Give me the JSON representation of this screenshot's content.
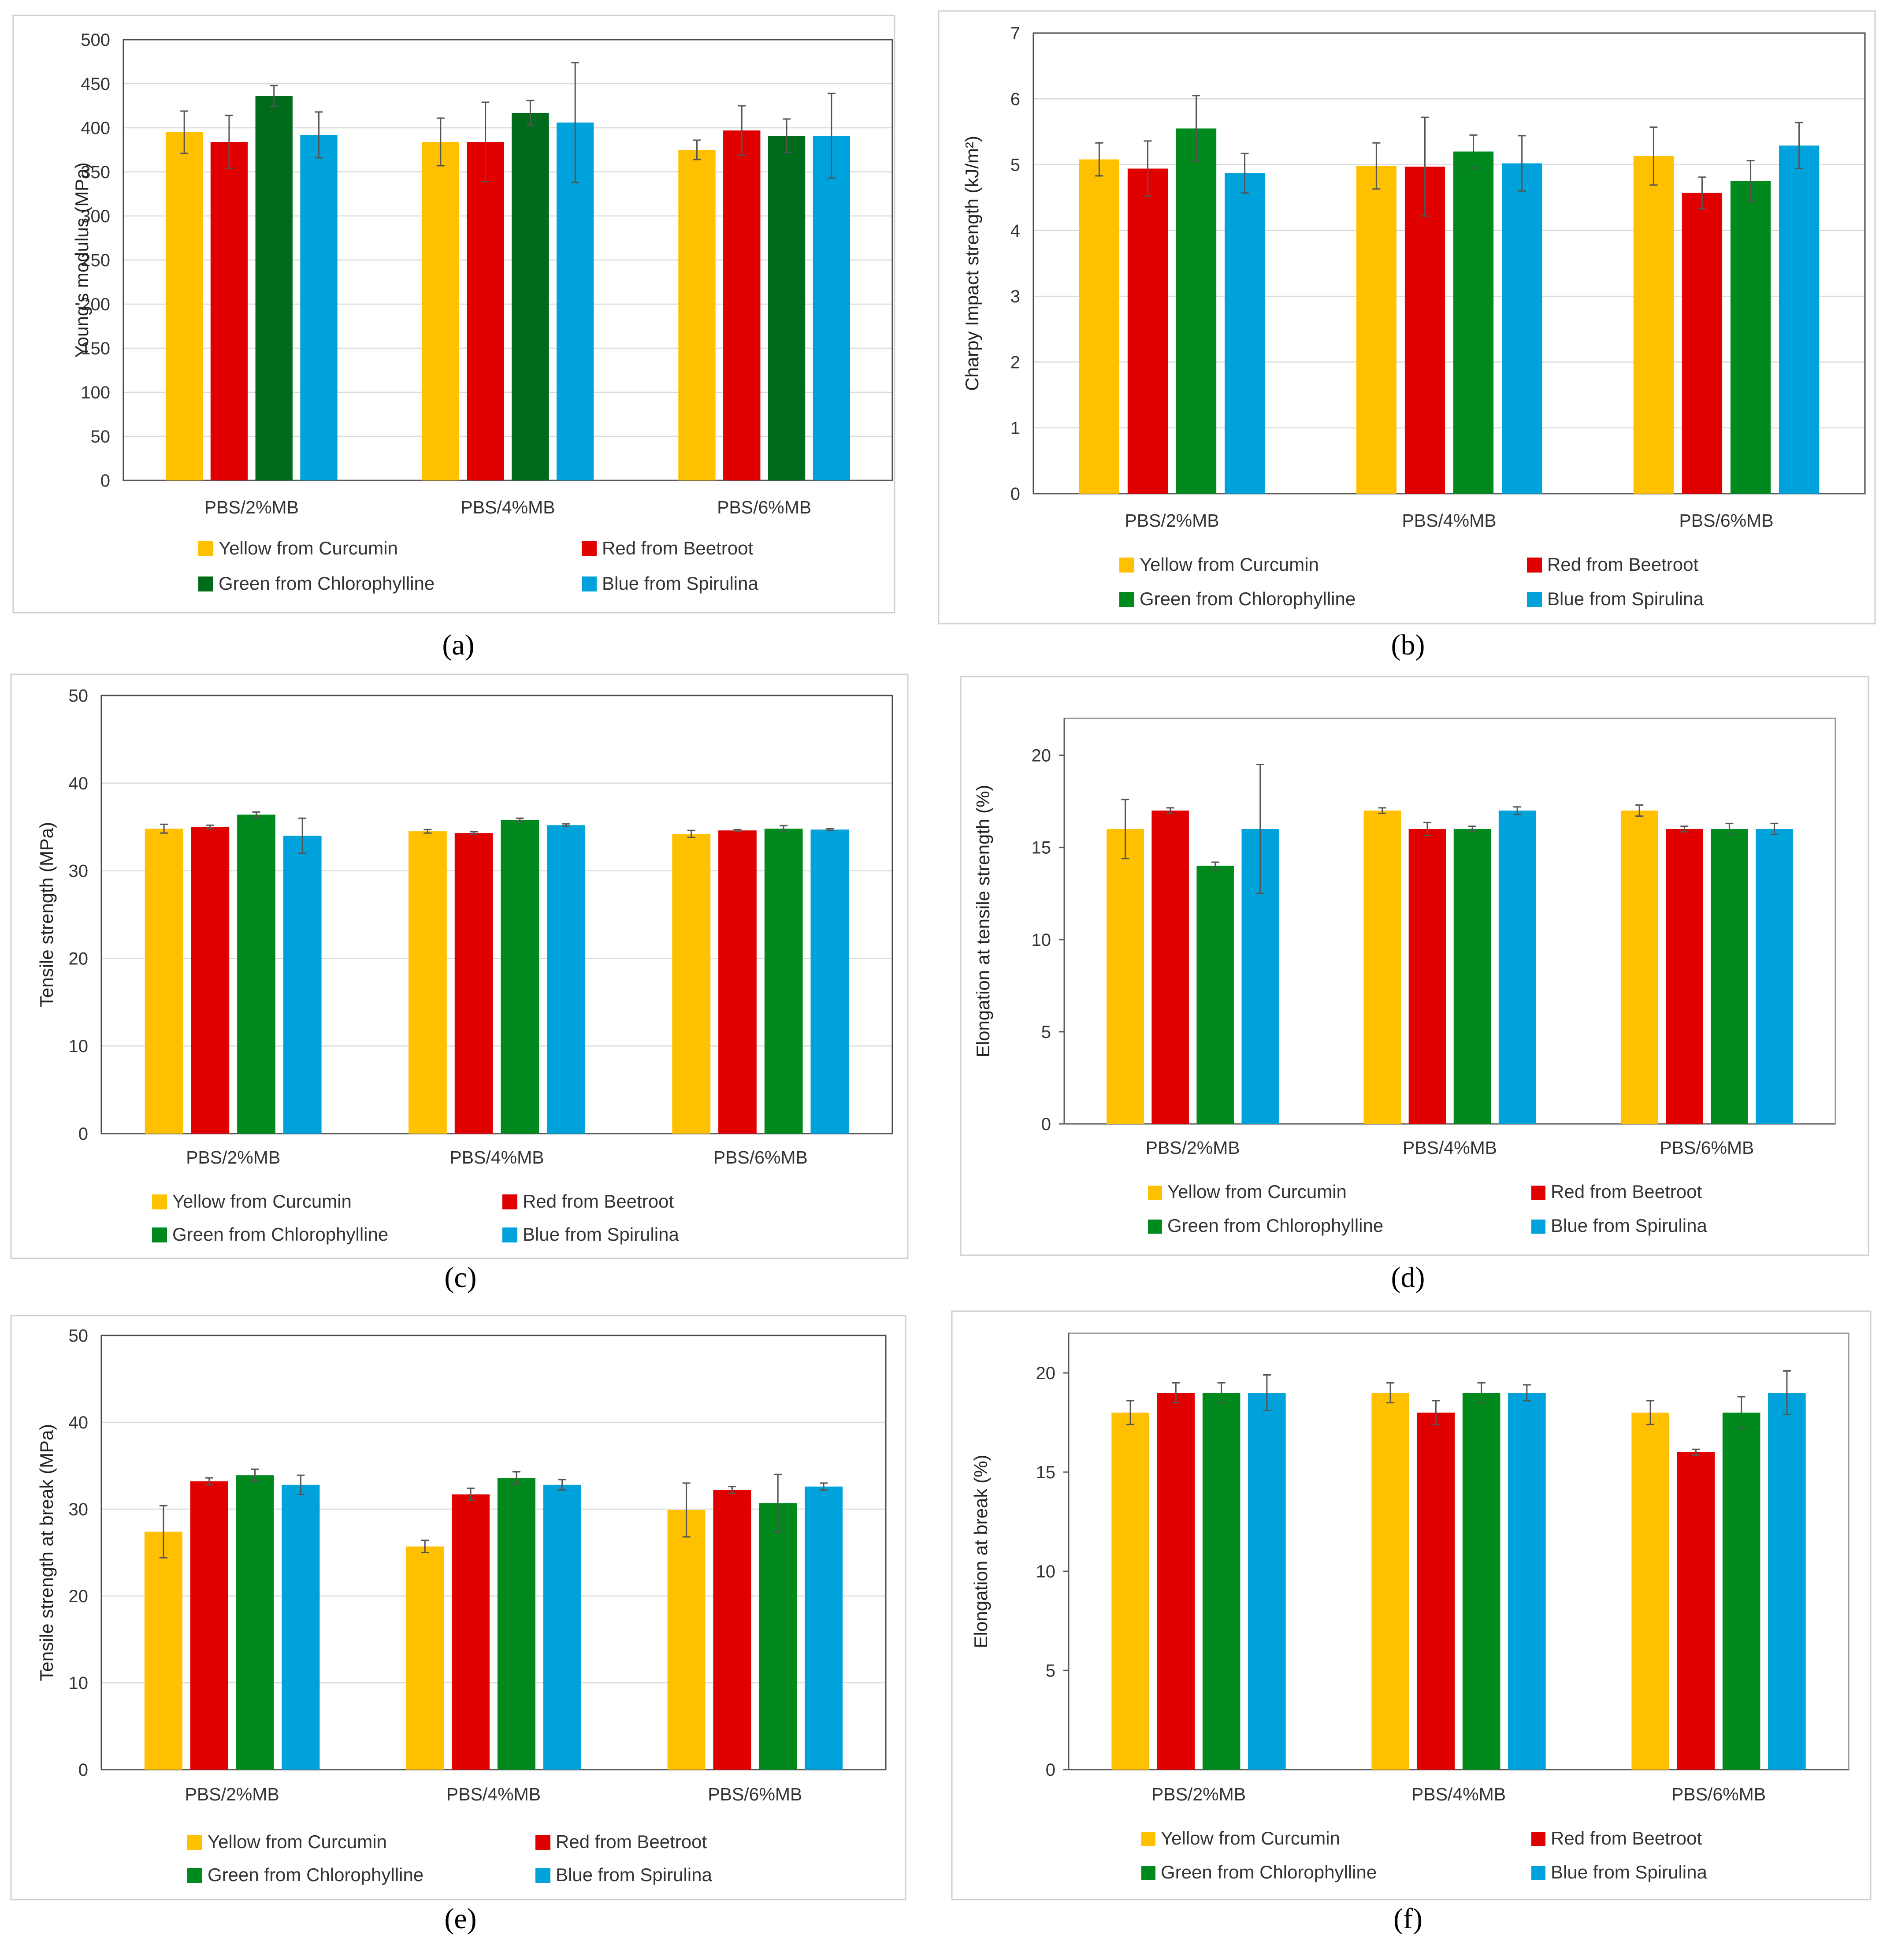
{
  "figure": {
    "series_names": [
      "Yellow from Curcumin",
      "Red from Beetroot",
      "Green from Chlorophylline",
      "Blue from Spirulina"
    ],
    "categories": [
      "PBS/2%MB",
      "PBS/4%MB",
      "PBS/6%MB"
    ]
  },
  "chart_data": [
    {
      "id": "a",
      "panel_label": "(a)",
      "type": "bar",
      "title": "",
      "ylabel": "Young's modulus (MPa)",
      "xlabel": "",
      "ylim": [
        0,
        500
      ],
      "ytick_step": 50,
      "grid": true,
      "legend": "bottom",
      "categories": [
        "PBS/2%MB",
        "PBS/4%MB",
        "PBS/6%MB"
      ],
      "series": [
        {
          "name": "Yellow from Curcumin",
          "color": "#FFC000",
          "values": [
            395,
            384,
            375
          ],
          "errors": [
            24,
            27,
            11
          ]
        },
        {
          "name": "Red from Beetroot",
          "color": "#E00000",
          "values": [
            384,
            384,
            397
          ],
          "errors": [
            30,
            45,
            28
          ]
        },
        {
          "name": "Green from Chlorophylline",
          "color": "#006B1A",
          "values": [
            436,
            417,
            391
          ],
          "errors": [
            12,
            14,
            19
          ]
        },
        {
          "name": "Blue from Spirulina",
          "color": "#00A2DB",
          "values": [
            392,
            406,
            391
          ],
          "errors": [
            26,
            68,
            48
          ]
        }
      ]
    },
    {
      "id": "b",
      "panel_label": "(b)",
      "type": "bar",
      "title": "",
      "ylabel": "Charpy Impact strength (kJ/m²)",
      "xlabel": "",
      "ylim": [
        0,
        7
      ],
      "ytick_step": 1,
      "grid": true,
      "legend": "bottom",
      "categories": [
        "PBS/2%MB",
        "PBS/4%MB",
        "PBS/6%MB"
      ],
      "series": [
        {
          "name": "Yellow from Curcumin",
          "color": "#FFC000",
          "values": [
            5.08,
            4.98,
            5.13
          ],
          "errors": [
            0.25,
            0.35,
            0.44
          ]
        },
        {
          "name": "Red from Beetroot",
          "color": "#E00000",
          "values": [
            4.94,
            4.97,
            4.57
          ],
          "errors": [
            0.42,
            0.75,
            0.24
          ]
        },
        {
          "name": "Green from Chlorophylline",
          "color": "#008A1E",
          "values": [
            5.55,
            5.2,
            4.75
          ],
          "errors": [
            0.5,
            0.25,
            0.31
          ]
        },
        {
          "name": "Blue from Spirulina",
          "color": "#00A2DB",
          "values": [
            4.87,
            5.02,
            5.29
          ],
          "errors": [
            0.3,
            0.42,
            0.35
          ]
        }
      ]
    },
    {
      "id": "c",
      "panel_label": "(c)",
      "type": "bar",
      "title": "",
      "ylabel": "Tensile strength (MPa)",
      "xlabel": "",
      "ylim": [
        0,
        50
      ],
      "ytick_step": 10,
      "grid": true,
      "legend": "bottom",
      "categories": [
        "PBS/2%MB",
        "PBS/4%MB",
        "PBS/6%MB"
      ],
      "series": [
        {
          "name": "Yellow from Curcumin",
          "color": "#FFC000",
          "values": [
            34.8,
            34.5,
            34.2
          ],
          "errors": [
            0.5,
            0.2,
            0.4
          ]
        },
        {
          "name": "Red from Beetroot",
          "color": "#E00000",
          "values": [
            35.0,
            34.3,
            34.6
          ],
          "errors": [
            0.2,
            0.15,
            0.1
          ]
        },
        {
          "name": "Green from Chlorophylline",
          "color": "#008A1E",
          "values": [
            36.4,
            35.8,
            34.8
          ],
          "errors": [
            0.3,
            0.2,
            0.35
          ]
        },
        {
          "name": "Blue from Spirulina",
          "color": "#00A2DB",
          "values": [
            34.0,
            35.2,
            34.7
          ],
          "errors": [
            2.0,
            0.15,
            0.1
          ]
        }
      ]
    },
    {
      "id": "d",
      "panel_label": "(d)",
      "type": "bar",
      "title": "",
      "ylabel": "Elongation at tensile strength (%)",
      "xlabel": "",
      "ylim": [
        0,
        22
      ],
      "ytick_step": 5,
      "grid": false,
      "legend": "bottom",
      "categories": [
        "PBS/2%MB",
        "PBS/4%MB",
        "PBS/6%MB"
      ],
      "series": [
        {
          "name": "Yellow from Curcumin",
          "color": "#FFC000",
          "values": [
            16,
            17,
            17
          ],
          "errors": [
            1.6,
            0.15,
            0.3
          ]
        },
        {
          "name": "Red from Beetroot",
          "color": "#E00000",
          "values": [
            17,
            16,
            16
          ],
          "errors": [
            0.15,
            0.35,
            0.15
          ]
        },
        {
          "name": "Green from Chlorophylline",
          "color": "#008A1E",
          "values": [
            14,
            16,
            16
          ],
          "errors": [
            0.2,
            0.15,
            0.3
          ]
        },
        {
          "name": "Blue from Spirulina",
          "color": "#00A2DB",
          "values": [
            16,
            17,
            16
          ],
          "errors": [
            3.5,
            0.2,
            0.3
          ]
        }
      ]
    },
    {
      "id": "e",
      "panel_label": "(e)",
      "type": "bar",
      "title": "",
      "ylabel": "Tensile strength at break (MPa)",
      "xlabel": "",
      "ylim": [
        0,
        50
      ],
      "ytick_step": 10,
      "grid": true,
      "legend": "bottom",
      "categories": [
        "PBS/2%MB",
        "PBS/4%MB",
        "PBS/6%MB"
      ],
      "series": [
        {
          "name": "Yellow from Curcumin",
          "color": "#FFC000",
          "values": [
            27.4,
            25.7,
            29.9
          ],
          "errors": [
            3.0,
            0.7,
            3.1
          ]
        },
        {
          "name": "Red from Beetroot",
          "color": "#E00000",
          "values": [
            33.2,
            31.7,
            32.2
          ],
          "errors": [
            0.4,
            0.7,
            0.4
          ]
        },
        {
          "name": "Green from Chlorophylline",
          "color": "#008A1E",
          "values": [
            33.9,
            33.6,
            30.7
          ],
          "errors": [
            0.7,
            0.7,
            3.3
          ]
        },
        {
          "name": "Blue from Spirulina",
          "color": "#00A2DB",
          "values": [
            32.8,
            32.8,
            32.6
          ],
          "errors": [
            1.1,
            0.6,
            0.4
          ]
        }
      ]
    },
    {
      "id": "f",
      "panel_label": "(f)",
      "type": "bar",
      "title": "",
      "ylabel": "Elongation at break (%)",
      "xlabel": "",
      "ylim": [
        0,
        22
      ],
      "ytick_step": 5,
      "grid": false,
      "legend": "bottom",
      "categories": [
        "PBS/2%MB",
        "PBS/4%MB",
        "PBS/6%MB"
      ],
      "series": [
        {
          "name": "Yellow from Curcumin",
          "color": "#FFC000",
          "values": [
            18,
            19,
            18
          ],
          "errors": [
            0.6,
            0.5,
            0.6
          ]
        },
        {
          "name": "Red from Beetroot",
          "color": "#E00000",
          "values": [
            19,
            18,
            16
          ],
          "errors": [
            0.5,
            0.6,
            0.15
          ]
        },
        {
          "name": "Green from Chlorophylline",
          "color": "#008A1E",
          "values": [
            19,
            19,
            18
          ],
          "errors": [
            0.5,
            0.5,
            0.8
          ]
        },
        {
          "name": "Blue from Spirulina",
          "color": "#00A2DB",
          "values": [
            19,
            19,
            19
          ],
          "errors": [
            0.9,
            0.4,
            1.1
          ]
        }
      ]
    }
  ]
}
